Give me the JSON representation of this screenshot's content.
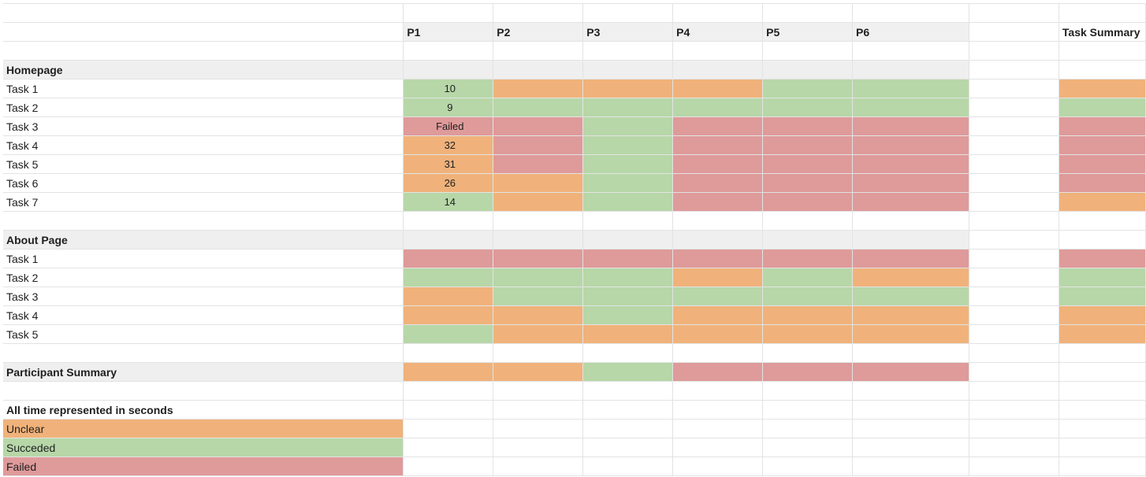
{
  "colors": {
    "unclear": "#f0b27a",
    "succeeded": "#b7d7a8",
    "failed": "#df9a9a",
    "header_bg": "#f0f0f0",
    "gridline": "#e3e3e3"
  },
  "header": {
    "participants": [
      "P1",
      "P2",
      "P3",
      "P4",
      "P5",
      "P6"
    ],
    "task_summary_label": "Task Summary"
  },
  "sections": [
    {
      "title": "Homepage",
      "tasks": [
        {
          "label": "Task 1",
          "p1_value": "10",
          "cells": [
            "green",
            "orange",
            "orange",
            "orange",
            "green",
            "green"
          ],
          "summary": "orange"
        },
        {
          "label": "Task 2",
          "p1_value": "9",
          "cells": [
            "green",
            "green",
            "green",
            "green",
            "green",
            "green"
          ],
          "summary": "green"
        },
        {
          "label": "Task 3",
          "p1_value": "Failed",
          "cells": [
            "red",
            "red",
            "green",
            "red",
            "red",
            "red"
          ],
          "summary": "red"
        },
        {
          "label": "Task 4",
          "p1_value": "32",
          "cells": [
            "orange",
            "red",
            "green",
            "red",
            "red",
            "red"
          ],
          "summary": "red"
        },
        {
          "label": "Task 5",
          "p1_value": "31",
          "cells": [
            "orange",
            "red",
            "green",
            "red",
            "red",
            "red"
          ],
          "summary": "red"
        },
        {
          "label": "Task 6",
          "p1_value": "26",
          "cells": [
            "orange",
            "orange",
            "green",
            "red",
            "red",
            "red"
          ],
          "summary": "red"
        },
        {
          "label": "Task 7",
          "p1_value": "14",
          "cells": [
            "green",
            "orange",
            "green",
            "red",
            "red",
            "red"
          ],
          "summary": "orange"
        }
      ]
    },
    {
      "title": "About Page",
      "tasks": [
        {
          "label": "Task 1",
          "p1_value": "",
          "cells": [
            "red",
            "red",
            "red",
            "red",
            "red",
            "red"
          ],
          "summary": "red"
        },
        {
          "label": "Task 2",
          "p1_value": "",
          "cells": [
            "green",
            "green",
            "green",
            "orange",
            "green",
            "orange"
          ],
          "summary": "green"
        },
        {
          "label": "Task 3",
          "p1_value": "",
          "cells": [
            "orange",
            "green",
            "green",
            "green",
            "green",
            "green"
          ],
          "summary": "green"
        },
        {
          "label": "Task 4",
          "p1_value": "",
          "cells": [
            "orange",
            "orange",
            "green",
            "orange",
            "orange",
            "orange"
          ],
          "summary": "orange"
        },
        {
          "label": "Task 5",
          "p1_value": "",
          "cells": [
            "green",
            "orange",
            "orange",
            "orange",
            "orange",
            "orange"
          ],
          "summary": "orange"
        }
      ]
    }
  ],
  "participant_summary": {
    "label": "Participant Summary",
    "cells": [
      "orange",
      "orange",
      "green",
      "red",
      "red",
      "red"
    ]
  },
  "legend": {
    "note": "All time represented in seconds",
    "items": [
      {
        "label": "Unclear",
        "color": "orange"
      },
      {
        "label": "Succeded",
        "color": "green"
      },
      {
        "label": "Failed",
        "color": "red"
      }
    ]
  }
}
